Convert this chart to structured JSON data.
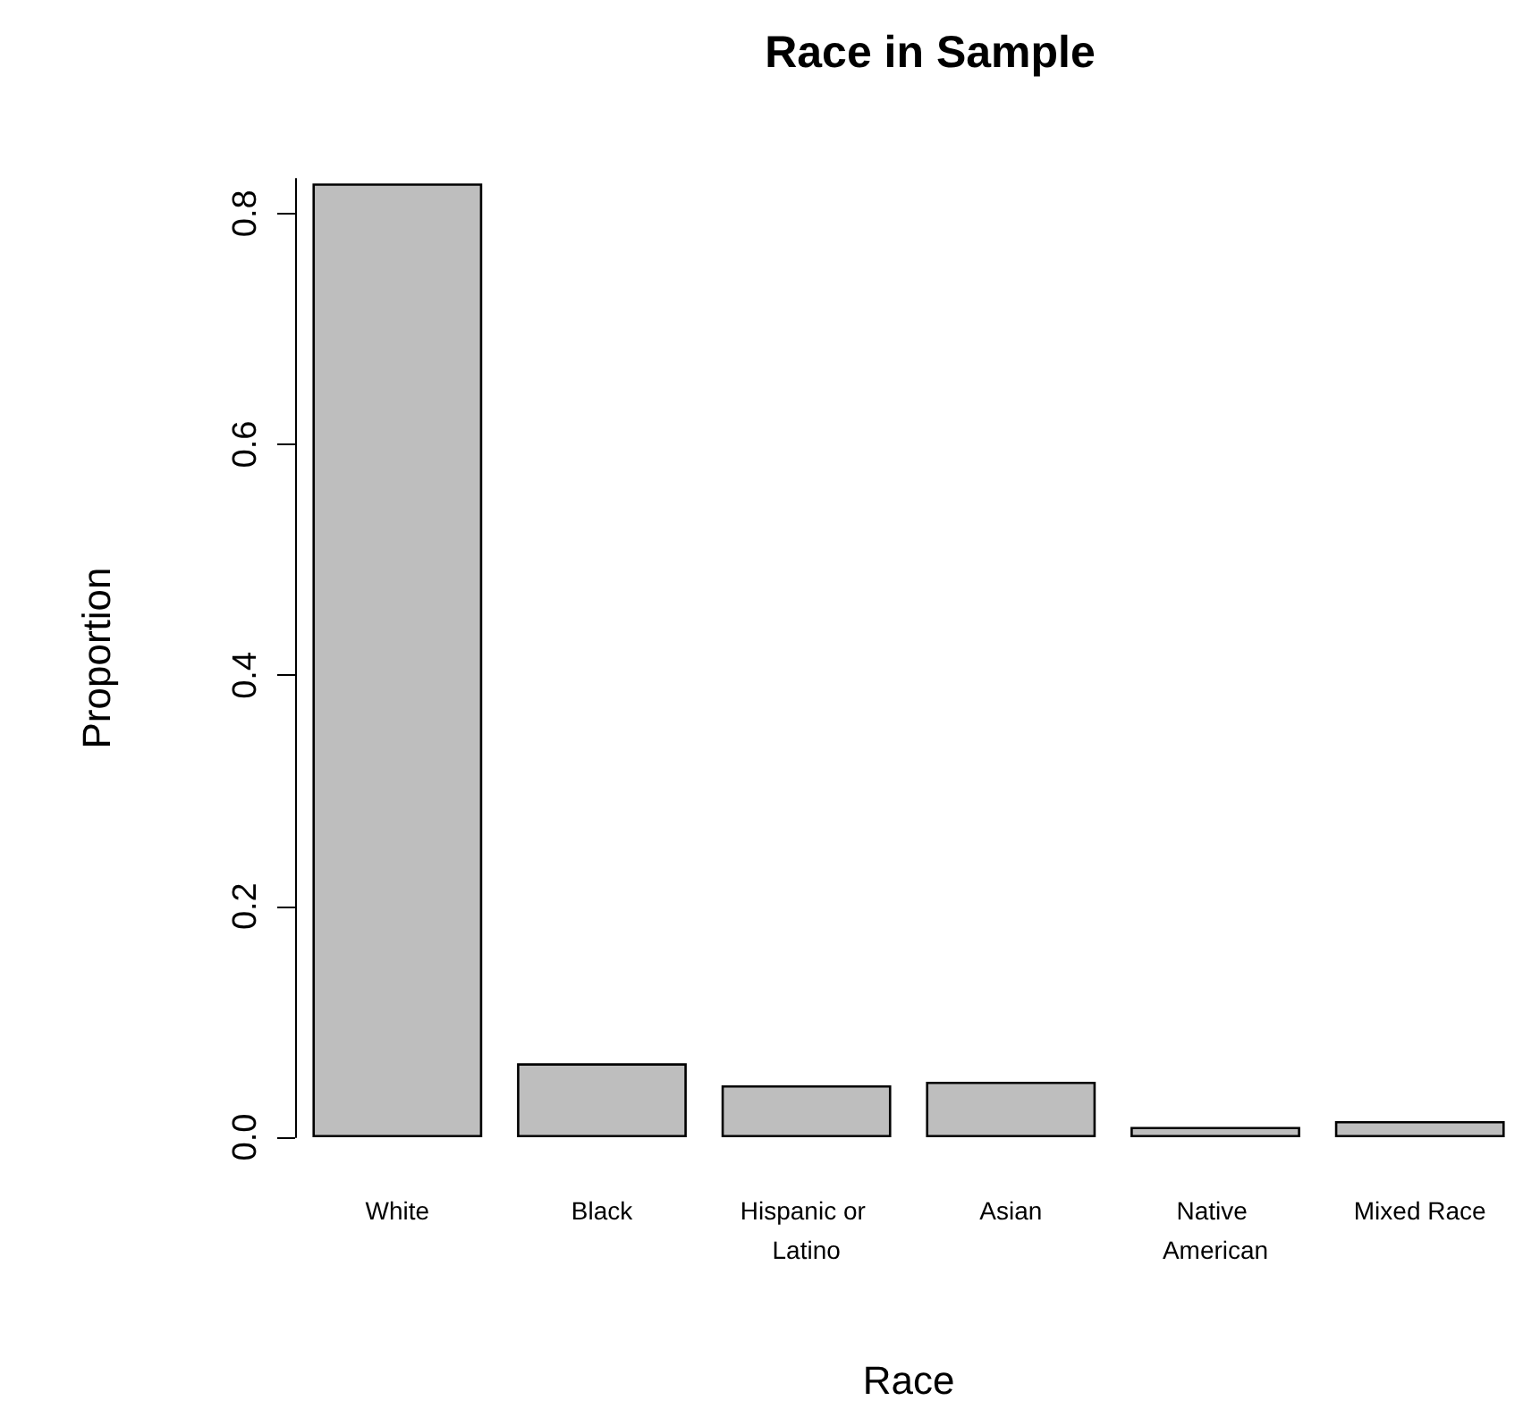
{
  "chart_data": {
    "type": "bar",
    "title": "Race in Sample",
    "xlabel": "Race",
    "ylabel": "Proportion",
    "categories": [
      "White",
      "Black",
      "Hispanic or Latino",
      "Asian",
      "Native American",
      "Mixed Race"
    ],
    "values": [
      0.826,
      0.064,
      0.045,
      0.048,
      0.009,
      0.014
    ],
    "color": "#bebebe",
    "ylim": [
      0,
      0.83
    ],
    "yticks": [
      {
        "value": 0,
        "label": "0.0"
      },
      {
        "value": 0.2,
        "label": "0.2"
      },
      {
        "value": 0.4,
        "label": "0.4"
      },
      {
        "value": 0.6,
        "label": "0.6"
      },
      {
        "value": 0.8,
        "label": "0.8"
      }
    ],
    "grid": false
  }
}
